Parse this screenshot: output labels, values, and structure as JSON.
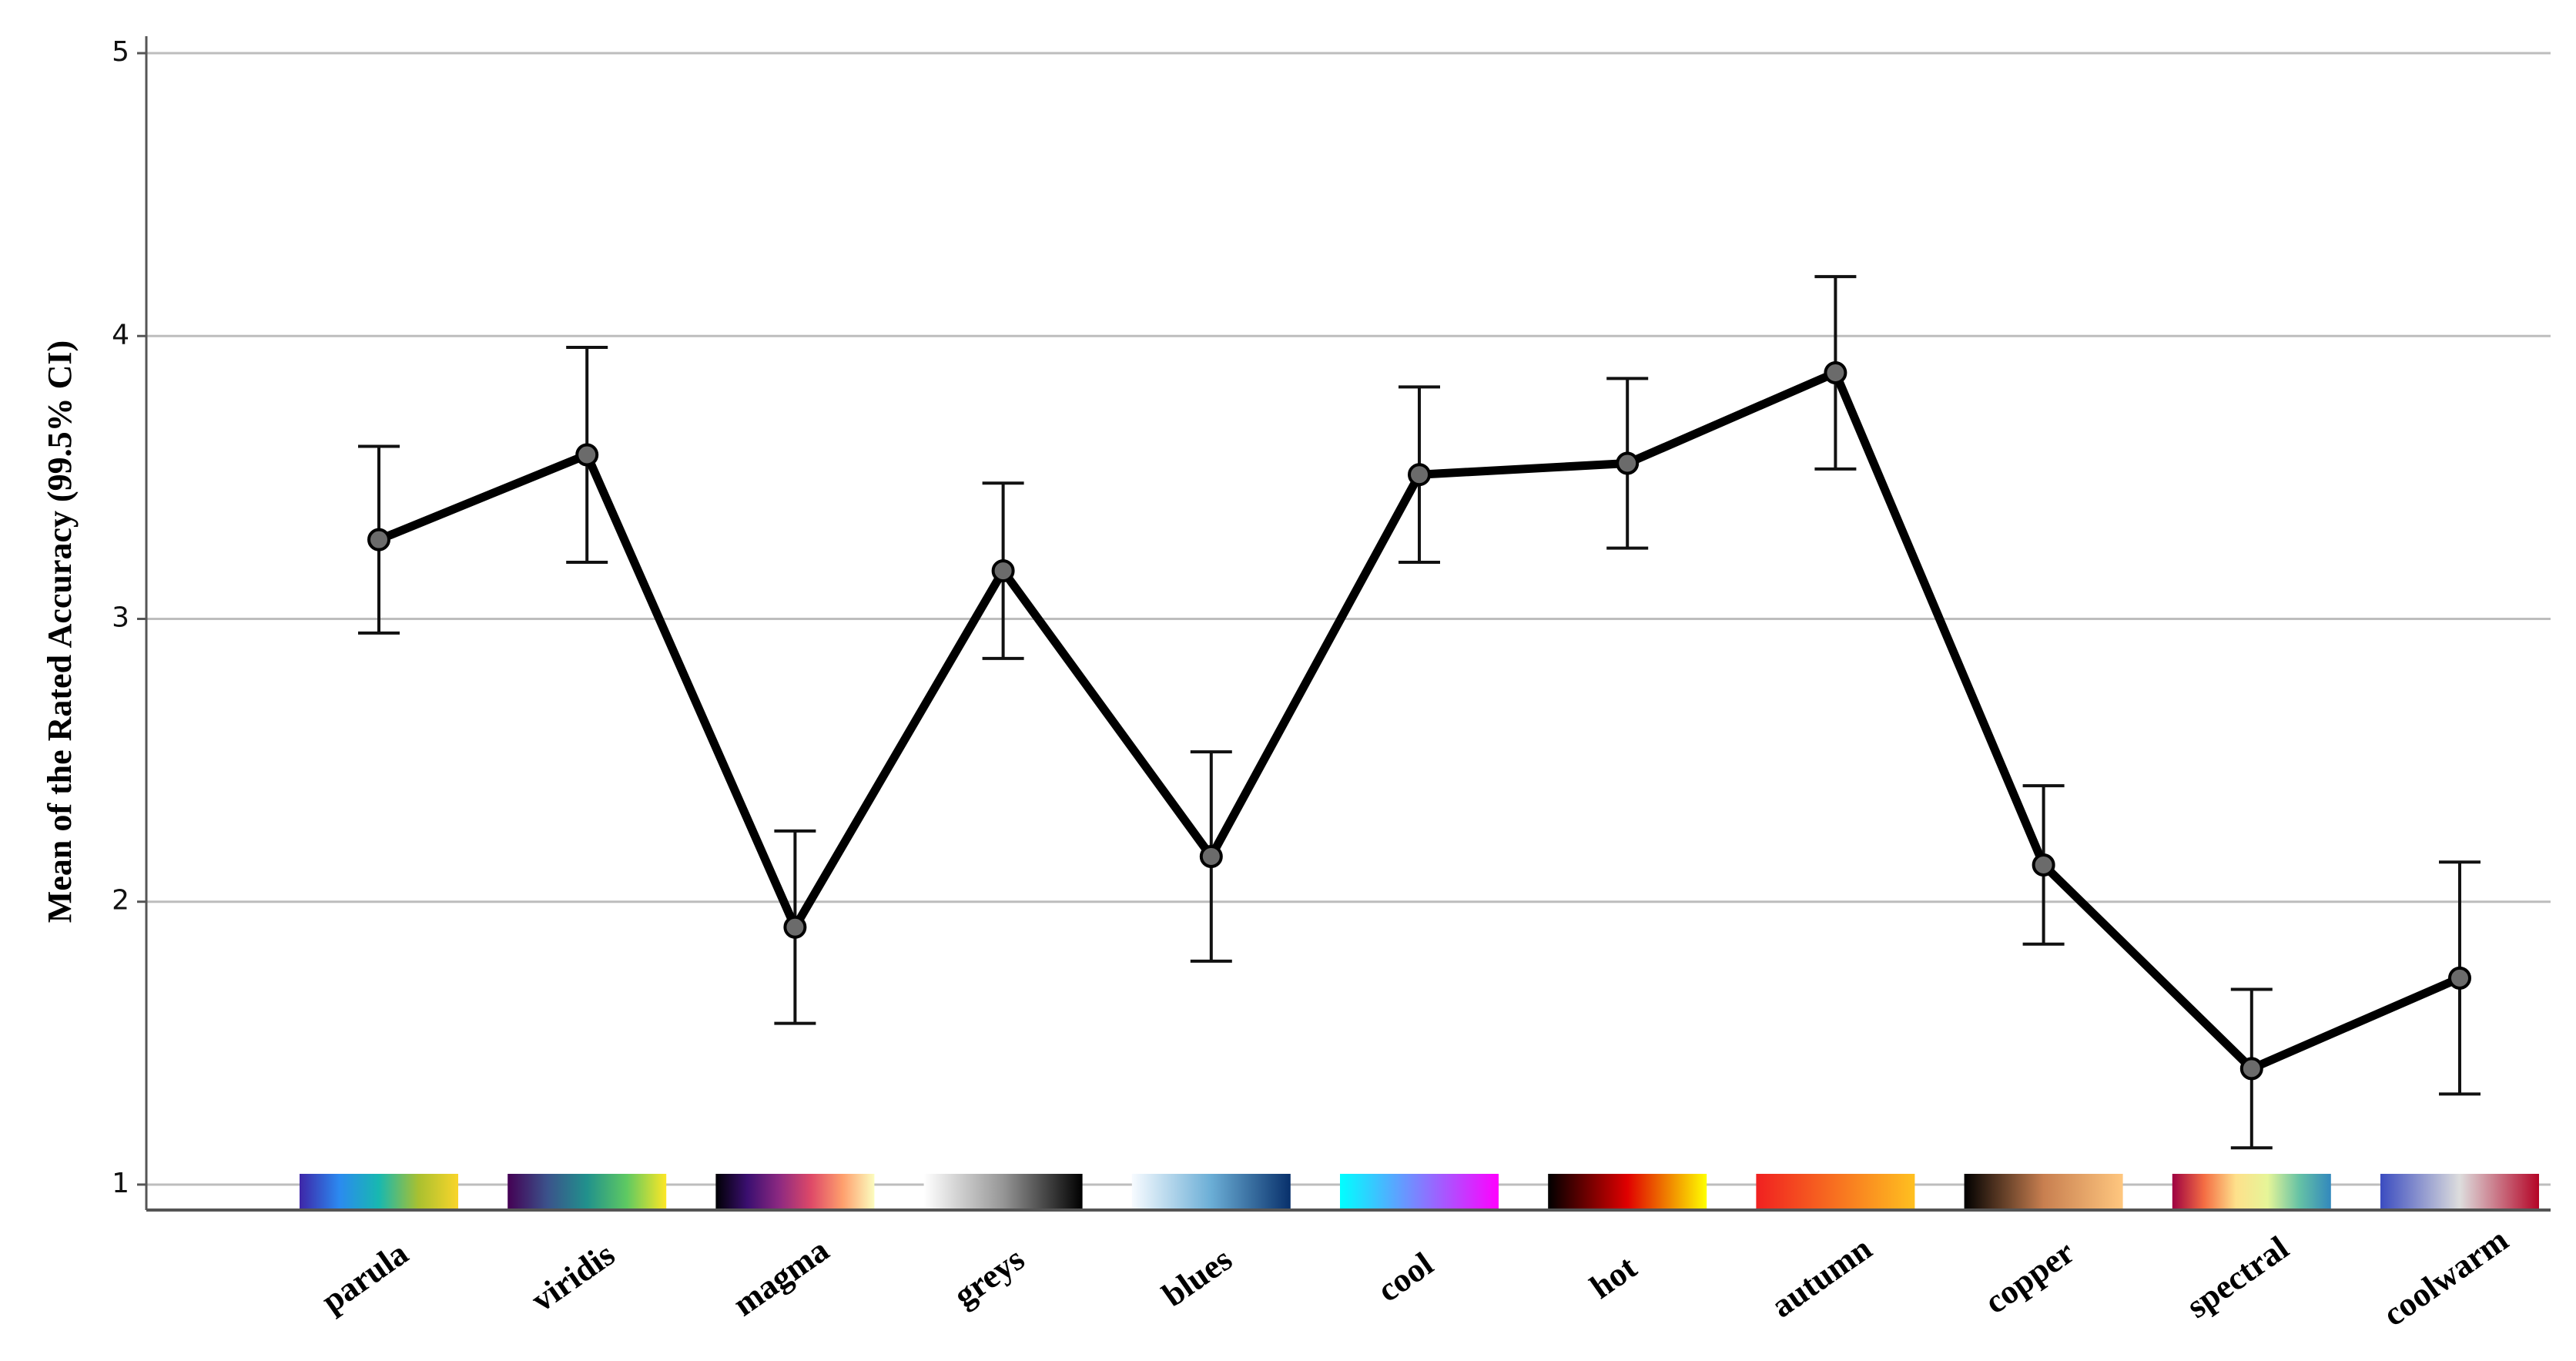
{
  "chart_data": {
    "type": "line",
    "y_label": "Mean of the Rated Accuracy (99.5% CI)",
    "categories": [
      "parula",
      "viridis",
      "magma",
      "greys",
      "blues",
      "cool",
      "hot",
      "autumn",
      "copper",
      "spectral",
      "coolwarm"
    ],
    "values": [
      3.28,
      3.58,
      1.91,
      3.17,
      2.16,
      3.51,
      3.55,
      3.87,
      2.13,
      1.41,
      1.73
    ],
    "errors": [
      0.33,
      0.38,
      0.34,
      0.31,
      0.37,
      0.31,
      0.3,
      0.34,
      0.28,
      0.28,
      0.41
    ],
    "color": "#000000",
    "marker_color": "#6b6b6b",
    "ylim": [
      0.91,
      5.06
    ],
    "yticks": [
      1,
      2,
      3,
      4,
      5
    ],
    "grid": true,
    "swatch_colors": [
      [
        "#3e26a8",
        "#2b8af0",
        "#18b8b0",
        "#a9c030",
        "#f9d52a"
      ],
      [
        "#440154",
        "#3b528b",
        "#21918c",
        "#5ec962",
        "#fde725"
      ],
      [
        "#000004",
        "#3b0f70",
        "#8c2981",
        "#de4968",
        "#fe9f6d",
        "#fcfdbf"
      ],
      [
        "#ffffff",
        "#969696",
        "#000000"
      ],
      [
        "#f7fbff",
        "#6baed6",
        "#08306b"
      ],
      [
        "#00ffff",
        "#ff00ff"
      ],
      [
        "#000000",
        "#e00000",
        "#ffff00"
      ],
      [
        "#f02020",
        "#ffc020"
      ],
      [
        "#000000",
        "#c87f50",
        "#ffc77f"
      ],
      [
        "#9e0142",
        "#f46d43",
        "#fee08b",
        "#e6f598",
        "#66c2a5",
        "#3288bd"
      ],
      [
        "#3b4cc0",
        "#dddddd",
        "#b40426"
      ]
    ]
  }
}
